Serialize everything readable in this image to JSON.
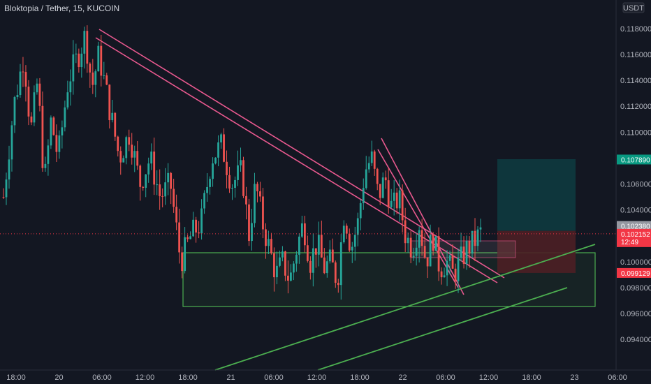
{
  "header": {
    "title": "Bloktopia / Tether, 15, KUCOIN"
  },
  "chart_data": {
    "type": "candlestick",
    "symbol": "Bloktopia / Tether",
    "interval": "15",
    "exchange": "KUCOIN",
    "currency": "USDT",
    "ylim": [
      0.0926,
      0.1187
    ],
    "y_ticks": [
      "0.118000",
      "0.116000",
      "0.114000",
      "0.112000",
      "0.110000",
      "0.108000",
      "0.106000",
      "0.104000",
      "0.102000",
      "0.100000",
      "0.098000",
      "0.096000",
      "0.094000"
    ],
    "x_ticks": [
      "18:00",
      "20",
      "06:00",
      "12:00",
      "18:00",
      "21",
      "06:00",
      "12:00",
      "18:00",
      "22",
      "06:00",
      "12:00",
      "18:00",
      "23",
      "06:00"
    ],
    "price_path": [
      [
        0,
        0.105
      ],
      [
        3,
        0.112
      ],
      [
        6,
        0.116
      ],
      [
        8,
        0.11
      ],
      [
        10,
        0.114
      ],
      [
        12,
        0.106
      ],
      [
        14,
        0.111
      ],
      [
        16,
        0.108
      ],
      [
        19,
        0.114
      ],
      [
        22,
        0.116
      ],
      [
        24,
        0.1175
      ],
      [
        26,
        0.1135
      ],
      [
        28,
        0.116
      ],
      [
        31,
        0.112
      ],
      [
        34,
        0.108
      ],
      [
        37,
        0.11
      ],
      [
        40,
        0.106
      ],
      [
        43,
        0.108
      ],
      [
        46,
        0.105
      ],
      [
        49,
        0.106
      ],
      [
        52,
        0.1
      ],
      [
        55,
        0.102
      ],
      [
        58,
        0.103
      ],
      [
        61,
        0.108
      ],
      [
        64,
        0.109
      ],
      [
        67,
        0.106
      ],
      [
        70,
        0.107
      ],
      [
        72,
        0.102
      ],
      [
        74,
        0.106
      ],
      [
        76,
        0.103
      ],
      [
        78,
        0.101
      ],
      [
        80,
        0.099
      ],
      [
        82,
        0.1
      ],
      [
        84,
        0.0985
      ],
      [
        86,
        0.101
      ],
      [
        88,
        0.103
      ],
      [
        90,
        0.1
      ],
      [
        92,
        0.1015
      ],
      [
        94,
        0.0995
      ],
      [
        96,
        0.1
      ],
      [
        98,
        0.0985
      ],
      [
        100,
        0.104
      ],
      [
        102,
        0.101
      ],
      [
        104,
        0.103
      ],
      [
        106,
        0.107
      ],
      [
        108,
        0.108
      ],
      [
        110,
        0.105
      ],
      [
        112,
        0.1065
      ],
      [
        114,
        0.104
      ],
      [
        116,
        0.105
      ],
      [
        118,
        0.102
      ],
      [
        120,
        0.101
      ],
      [
        122,
        0.103
      ],
      [
        124,
        0.1
      ],
      [
        126,
        0.102
      ],
      [
        128,
        0.0995
      ],
      [
        130,
        0.1
      ],
      [
        132,
        0.099
      ],
      [
        134,
        0.1
      ],
      [
        136,
        0.101
      ],
      [
        138,
        0.1015
      ],
      [
        140,
        0.1022
      ]
    ],
    "last_price": 0.102152,
    "countdown": "12:49",
    "drawings": {
      "resistance_channel": [
        [
          [
            0.116,
            0.117
          ],
          [
            0.0985,
            0.099
          ]
        ]
      ],
      "support_lines": []
    },
    "position": {
      "type": "long",
      "entry_label": "0.102380",
      "target_label": "0.107890",
      "stop_label": "0.099129",
      "entry": 0.10238,
      "target": 0.10789,
      "stop": 0.099129
    },
    "price_labels": [
      {
        "value": 0.10789,
        "label": "0.107890",
        "color": "#089981"
      },
      {
        "value": 0.10238,
        "label": "0.102380",
        "color": "#9598a1"
      },
      {
        "value": 0.102152,
        "label": "0.102152",
        "color": "#f23645"
      },
      {
        "value": 0.099129,
        "label": "0.099129",
        "color": "#f23645"
      }
    ],
    "colors": {
      "background": "#131722",
      "up": "#26a69a",
      "down": "#ef5350",
      "trendline_pink": "#e9598f",
      "trendline_green": "#4caf50",
      "target_zone": "#0e3a3f",
      "stop_zone": "#4d1f25"
    }
  }
}
